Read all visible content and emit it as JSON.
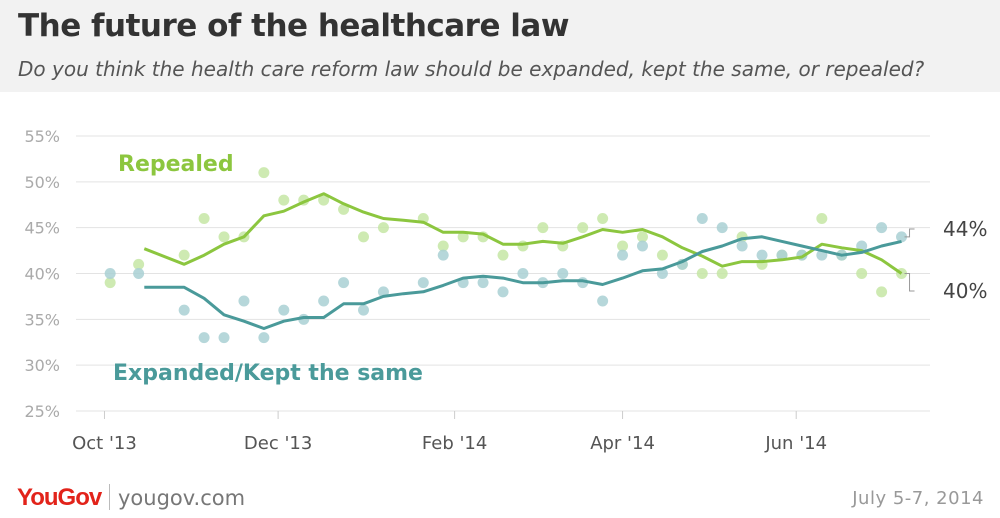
{
  "header": {
    "title": "The future of the healthcare law",
    "subtitle": "Do you think the health care reform law should be expanded, kept the same, or repealed?"
  },
  "footer": {
    "logo": "YouGov",
    "site": "yougov.com",
    "date": "July 5-7, 2014"
  },
  "colors": {
    "repealed": "#8cc63f",
    "repealed_dots": "#c6e6a4",
    "expanded": "#4a9a9a",
    "expanded_dots": "#a9d0d4",
    "axis_text": "#aaaaaa",
    "grid": "#e3e3e3"
  },
  "chart_data": {
    "type": "line",
    "x_axis": {
      "ticks": [
        "Oct '13",
        "Dec '13",
        "Feb '14",
        "Apr '14",
        "Jun '14"
      ],
      "tick_days": [
        0,
        61,
        123,
        182,
        243
      ],
      "range_days": [
        -10,
        290
      ]
    },
    "y_axis": {
      "ticks": [
        "25%",
        "30%",
        "35%",
        "40%",
        "45%",
        "50%",
        "55%"
      ],
      "tick_values": [
        25,
        30,
        35,
        40,
        45,
        50,
        55
      ],
      "ylim": [
        25,
        55
      ]
    },
    "grid": true,
    "series": [
      {
        "name": "Repealed",
        "key": "repealed",
        "end_label": "40%",
        "points": [
          [
            2,
            39
          ],
          [
            12,
            41
          ],
          [
            28,
            42
          ],
          [
            35,
            46
          ],
          [
            42,
            44
          ],
          [
            49,
            44
          ],
          [
            56,
            51
          ],
          [
            63,
            48
          ],
          [
            70,
            48
          ],
          [
            77,
            48
          ],
          [
            84,
            47
          ],
          [
            91,
            44
          ],
          [
            98,
            45
          ],
          [
            112,
            46
          ],
          [
            119,
            43
          ],
          [
            126,
            44
          ],
          [
            133,
            44
          ],
          [
            140,
            42
          ],
          [
            147,
            43
          ],
          [
            154,
            45
          ],
          [
            161,
            43
          ],
          [
            168,
            45
          ],
          [
            175,
            46
          ],
          [
            182,
            43
          ],
          [
            189,
            44
          ],
          [
            196,
            42
          ],
          [
            203,
            41
          ],
          [
            210,
            40
          ],
          [
            217,
            40
          ],
          [
            224,
            44
          ],
          [
            231,
            41
          ],
          [
            238,
            42
          ],
          [
            245,
            42
          ],
          [
            252,
            46
          ],
          [
            259,
            42
          ],
          [
            266,
            40
          ],
          [
            273,
            38
          ],
          [
            280,
            40
          ]
        ],
        "trend": [
          [
            14,
            42.7
          ],
          [
            28,
            41.0
          ],
          [
            35,
            42.0
          ],
          [
            42,
            43.2
          ],
          [
            49,
            44.0
          ],
          [
            56,
            46.3
          ],
          [
            63,
            46.8
          ],
          [
            70,
            47.8
          ],
          [
            77,
            48.7
          ],
          [
            84,
            47.6
          ],
          [
            91,
            46.7
          ],
          [
            98,
            46.0
          ],
          [
            105,
            45.8
          ],
          [
            112,
            45.6
          ],
          [
            119,
            44.5
          ],
          [
            126,
            44.5
          ],
          [
            133,
            44.3
          ],
          [
            140,
            43.2
          ],
          [
            147,
            43.2
          ],
          [
            154,
            43.5
          ],
          [
            161,
            43.3
          ],
          [
            168,
            44.0
          ],
          [
            175,
            44.8
          ],
          [
            182,
            44.5
          ],
          [
            189,
            44.8
          ],
          [
            196,
            44.0
          ],
          [
            203,
            42.8
          ],
          [
            210,
            41.9
          ],
          [
            217,
            40.8
          ],
          [
            224,
            41.3
          ],
          [
            231,
            41.3
          ],
          [
            238,
            41.5
          ],
          [
            245,
            41.8
          ],
          [
            252,
            43.2
          ],
          [
            259,
            42.8
          ],
          [
            266,
            42.5
          ],
          [
            273,
            41.5
          ],
          [
            280,
            40.0
          ]
        ]
      },
      {
        "name": "Expanded/Kept the same",
        "key": "expanded",
        "end_label": "44%",
        "points": [
          [
            2,
            40
          ],
          [
            12,
            40
          ],
          [
            28,
            36
          ],
          [
            35,
            33
          ],
          [
            42,
            33
          ],
          [
            49,
            37
          ],
          [
            56,
            33
          ],
          [
            63,
            36
          ],
          [
            70,
            35
          ],
          [
            77,
            37
          ],
          [
            84,
            39
          ],
          [
            91,
            36
          ],
          [
            98,
            38
          ],
          [
            112,
            39
          ],
          [
            119,
            42
          ],
          [
            126,
            39
          ],
          [
            133,
            39
          ],
          [
            140,
            38
          ],
          [
            147,
            40
          ],
          [
            154,
            39
          ],
          [
            161,
            40
          ],
          [
            168,
            39
          ],
          [
            175,
            37
          ],
          [
            182,
            42
          ],
          [
            189,
            43
          ],
          [
            196,
            40
          ],
          [
            203,
            41
          ],
          [
            210,
            46
          ],
          [
            217,
            45
          ],
          [
            224,
            43
          ],
          [
            231,
            42
          ],
          [
            238,
            42
          ],
          [
            245,
            42
          ],
          [
            252,
            42
          ],
          [
            259,
            42
          ],
          [
            266,
            43
          ],
          [
            273,
            45
          ],
          [
            280,
            44
          ]
        ],
        "trend": [
          [
            14,
            38.5
          ],
          [
            28,
            38.5
          ],
          [
            35,
            37.3
          ],
          [
            42,
            35.5
          ],
          [
            49,
            34.8
          ],
          [
            56,
            34.0
          ],
          [
            63,
            34.8
          ],
          [
            70,
            35.2
          ],
          [
            77,
            35.2
          ],
          [
            84,
            36.7
          ],
          [
            91,
            36.7
          ],
          [
            98,
            37.5
          ],
          [
            105,
            37.8
          ],
          [
            112,
            38.0
          ],
          [
            119,
            38.7
          ],
          [
            126,
            39.5
          ],
          [
            133,
            39.7
          ],
          [
            140,
            39.5
          ],
          [
            147,
            39.0
          ],
          [
            154,
            39.0
          ],
          [
            161,
            39.2
          ],
          [
            168,
            39.2
          ],
          [
            175,
            38.8
          ],
          [
            182,
            39.5
          ],
          [
            189,
            40.3
          ],
          [
            196,
            40.5
          ],
          [
            203,
            41.3
          ],
          [
            210,
            42.4
          ],
          [
            217,
            43.0
          ],
          [
            224,
            43.8
          ],
          [
            231,
            44.0
          ],
          [
            238,
            43.5
          ],
          [
            245,
            43.0
          ],
          [
            252,
            42.5
          ],
          [
            259,
            42.0
          ],
          [
            266,
            42.3
          ],
          [
            273,
            43.0
          ],
          [
            280,
            43.5
          ]
        ]
      }
    ],
    "annotations": [
      {
        "series": "repealed",
        "text": "Repealed"
      },
      {
        "series": "expanded",
        "text": "Expanded/Kept the same"
      }
    ]
  }
}
